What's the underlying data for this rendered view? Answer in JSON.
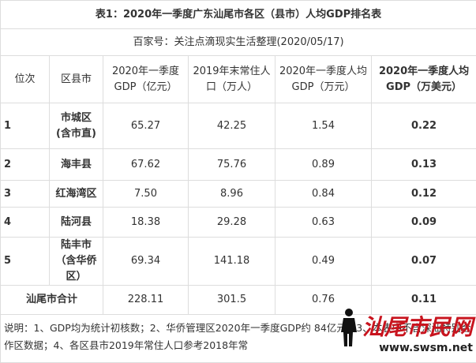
{
  "table": {
    "title": "表1：2020年一季度广东汕尾市各区（县市）人均GDP排名表",
    "subtitle": "百家号：关注点滴现实生活整理(2020/05/17)",
    "headers": [
      "位次",
      "区县市",
      "2020年一季度GDP（亿元）",
      "2019年末常住人口（万人）",
      "2020年一季度人均GDP（万元）",
      "2020年一季度人均GDP（万美元）"
    ],
    "rows": [
      [
        "1",
        "市城区\n(含市直)",
        "65.27",
        "42.25",
        "1.54",
        "0.22"
      ],
      [
        "2",
        "海丰县",
        "67.62",
        "75.76",
        "0.89",
        "0.13"
      ],
      [
        "3",
        "红海湾区",
        "7.50",
        "8.96",
        "0.84",
        "0.12"
      ],
      [
        "4",
        "陆河县",
        "18.38",
        "29.28",
        "0.63",
        "0.09"
      ],
      [
        "5",
        "陆丰市\n（含华侨区）",
        "69.34",
        "141.18",
        "0.49",
        "0.07"
      ]
    ],
    "total": [
      "汕尾市合计",
      "228.11",
      "301.5",
      "0.76",
      "0.11"
    ],
    "note": "说明：1、GDP均为统计初核数；2、华侨管理区2020年一季度GDP约 84亿元；3、本表中不含深汕特别合作区数据；4、各区县市2019年常住人口参考2018年常",
    "watermark": {
      "name": "汕尾市民网",
      "url": "www.swsm.net"
    }
  }
}
